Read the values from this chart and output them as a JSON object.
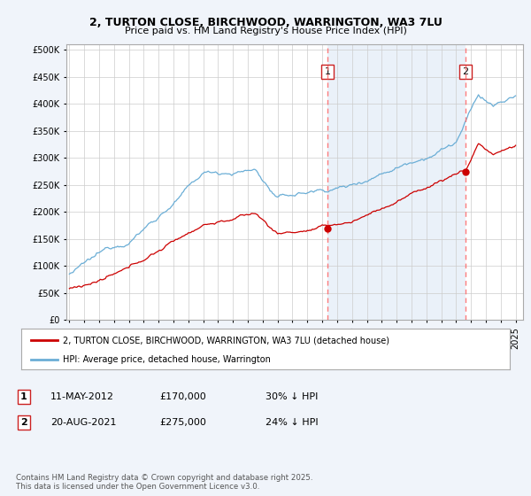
{
  "title1": "2, TURTON CLOSE, BIRCHWOOD, WARRINGTON, WA3 7LU",
  "title2": "Price paid vs. HM Land Registry's House Price Index (HPI)",
  "ylabel_ticks": [
    "£0",
    "£50K",
    "£100K",
    "£150K",
    "£200K",
    "£250K",
    "£300K",
    "£350K",
    "£400K",
    "£450K",
    "£500K"
  ],
  "ytick_values": [
    0,
    50000,
    100000,
    150000,
    200000,
    250000,
    300000,
    350000,
    400000,
    450000,
    500000
  ],
  "year_start": 1995,
  "year_end": 2025,
  "hpi_color": "#6baed6",
  "price_color": "#cc0000",
  "vline_color": "#ff6666",
  "vline_style": "--",
  "vline_alpha": 0.85,
  "shade_color": "#dce9f5",
  "shade_alpha": 0.6,
  "sale1_year": 2012.36,
  "sale1_price": 170000,
  "sale1_label": "1",
  "sale2_year": 2021.64,
  "sale2_price": 275000,
  "sale2_label": "2",
  "legend_line1": "2, TURTON CLOSE, BIRCHWOOD, WARRINGTON, WA3 7LU (detached house)",
  "legend_line2": "HPI: Average price, detached house, Warrington",
  "table_row1": [
    "1",
    "11-MAY-2012",
    "£170,000",
    "30% ↓ HPI"
  ],
  "table_row2": [
    "2",
    "20-AUG-2021",
    "£275,000",
    "24% ↓ HPI"
  ],
  "footnote": "Contains HM Land Registry data © Crown copyright and database right 2025.\nThis data is licensed under the Open Government Licence v3.0.",
  "bg_color": "#f0f4fa",
  "plot_bg": "#ffffff",
  "grid_color": "#cccccc"
}
